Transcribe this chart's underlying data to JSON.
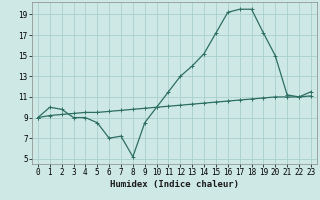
{
  "xlabel": "Humidex (Indice chaleur)",
  "background_color": "#cde8e5",
  "grid_color": "#aacfcc",
  "line_color": "#2d6e63",
  "xlim": [
    -0.5,
    23.5
  ],
  "ylim": [
    4.5,
    20.2
  ],
  "xticks": [
    0,
    1,
    2,
    3,
    4,
    5,
    6,
    7,
    8,
    9,
    10,
    11,
    12,
    13,
    14,
    15,
    16,
    17,
    18,
    19,
    20,
    21,
    22,
    23
  ],
  "yticks": [
    5,
    7,
    9,
    11,
    13,
    15,
    17,
    19
  ],
  "curve1_x": [
    0,
    1,
    2,
    3,
    4,
    5,
    6,
    7,
    8,
    9,
    10,
    11,
    12,
    13,
    14,
    15,
    16,
    17,
    18,
    19,
    20,
    21,
    22,
    23
  ],
  "curve1_y": [
    9.0,
    10.0,
    9.8,
    9.0,
    9.0,
    8.5,
    7.0,
    7.2,
    5.2,
    8.5,
    10.0,
    11.5,
    13.0,
    14.0,
    15.2,
    17.2,
    19.2,
    19.5,
    19.5,
    17.2,
    15.0,
    11.2,
    11.0,
    11.5
  ],
  "curve2_x": [
    0,
    1,
    2,
    3,
    4,
    5,
    6,
    7,
    8,
    9,
    10,
    11,
    12,
    13,
    14,
    15,
    16,
    17,
    18,
    19,
    20,
    21,
    22,
    23
  ],
  "curve2_y": [
    9.0,
    9.2,
    9.3,
    9.4,
    9.5,
    9.5,
    9.6,
    9.7,
    9.8,
    9.9,
    10.0,
    10.1,
    10.2,
    10.3,
    10.4,
    10.5,
    10.6,
    10.7,
    10.8,
    10.9,
    11.0,
    11.0,
    11.0,
    11.1
  ],
  "xlabel_fontsize": 6.5,
  "tick_fontsize": 5.5,
  "line_width": 0.9,
  "marker_size": 3.0
}
